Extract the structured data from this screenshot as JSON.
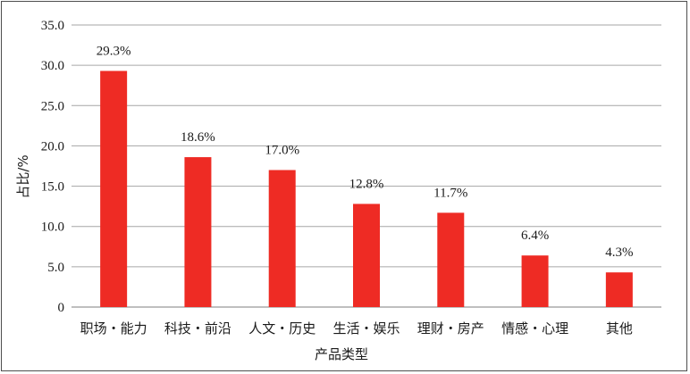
{
  "chart_data": {
    "type": "bar",
    "title": "",
    "xlabel": "产品类型",
    "ylabel": "占比/%",
    "categories": [
      "职场・能力",
      "科技・前沿",
      "人文・历史",
      "生活・娱乐",
      "理财・房产",
      "情感・心理",
      "其他"
    ],
    "values": [
      29.3,
      18.6,
      17.0,
      12.8,
      11.7,
      6.4,
      4.3
    ],
    "value_labels": [
      "29.3%",
      "18.6%",
      "17.0%",
      "12.8%",
      "11.7%",
      "6.4%",
      "4.3%"
    ],
    "ylim": [
      0,
      35
    ],
    "yticks": [
      0,
      5,
      10,
      15,
      20,
      25,
      30,
      35
    ],
    "ytick_labels": [
      "0",
      "5.0",
      "10.0",
      "15.0",
      "20.0",
      "25.0",
      "30.0",
      "35.0"
    ],
    "grid": true,
    "bar_color": "#ee2b24",
    "grid_color": "#a6a6a6"
  }
}
